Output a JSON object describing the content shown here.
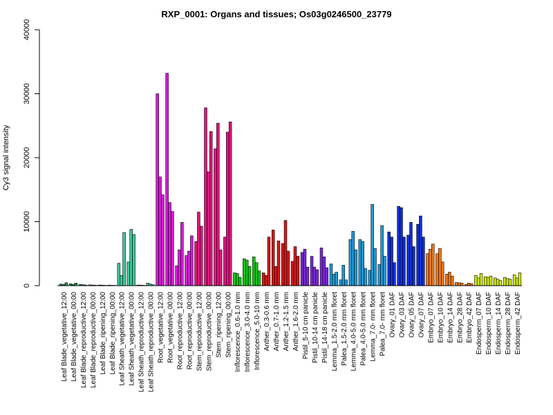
{
  "chart_data": {
    "type": "bar",
    "title": "RXP_0001: Organs and tissues; Os03g0246500_23779",
    "xlabel": "",
    "ylabel": "Cy3 signal intensity",
    "ylim": [
      0,
      40000
    ],
    "yticks": [
      0,
      10000,
      20000,
      30000,
      40000
    ],
    "grid": false,
    "legend": "none",
    "groups": [
      {
        "label": "Leaf Blade_vegetative_12:00",
        "color": "#1e8c4a",
        "values": [
          250,
          180,
          450
        ]
      },
      {
        "label": "Leaf Blade_vegetative_00:00",
        "color": "#1e8c4a",
        "values": [
          300,
          200,
          400
        ]
      },
      {
        "label": "Leaf Blade_reproductive_12:00",
        "color": "#1e8c4a",
        "values": [
          200,
          150,
          100
        ]
      },
      {
        "label": "Leaf Blade_reproductive_00:00",
        "color": "#1e8c4a",
        "values": [
          120,
          100,
          80
        ]
      },
      {
        "label": "Leaf Blade_ripening_12:00",
        "color": "#1e8c4a",
        "values": [
          100,
          80,
          60
        ]
      },
      {
        "label": "Leaf Blade_ripening_00:00",
        "color": "#1e8c4a",
        "values": [
          80,
          60,
          50
        ]
      },
      {
        "label": "Leaf Sheath_vegetative_12:00",
        "color": "#3cc89a",
        "values": [
          3500,
          1600,
          8300
        ]
      },
      {
        "label": "Leaf Sheath_vegetative_00:00",
        "color": "#3cc89a",
        "values": [
          3700,
          8800,
          8000
        ]
      },
      {
        "label": "Leaf Sheath_reproductive_12:00",
        "color": "#3cc89a",
        "values": [
          100,
          80,
          60
        ]
      },
      {
        "label": "Leaf Sheath_reproductive_00:00",
        "color": "#3cc89a",
        "values": [
          400,
          250,
          150
        ]
      },
      {
        "label": "Root_vegetative_12:00",
        "color": "#d81ad8",
        "values": [
          30000,
          17000,
          14200
        ]
      },
      {
        "label": "Root_vegetative_00:00",
        "color": "#d81ad8",
        "values": [
          33200,
          13000,
          11600
        ]
      },
      {
        "label": "Root_reproductive_12:00",
        "color": "#d81ad8",
        "values": [
          3100,
          5600,
          9900
        ]
      },
      {
        "label": "Root_reproductive_00:00",
        "color": "#d81ad8",
        "values": [
          4700,
          5400,
          7800
        ]
      },
      {
        "label": "Stem_reproductive_12:00",
        "color": "#e0167e",
        "values": [
          6900,
          11500,
          9300
        ]
      },
      {
        "label": "Stem_reproductive_00:00",
        "color": "#e0167e",
        "values": [
          27800,
          17800,
          24100
        ]
      },
      {
        "label": "Stem_ripening_12:00",
        "color": "#e0167e",
        "values": [
          21400,
          25400,
          5600
        ]
      },
      {
        "label": "Stem_ripening_00:00",
        "color": "#e0167e",
        "values": [
          7600,
          24000,
          25600
        ]
      },
      {
        "label": "Inflorescence_0.6-1.0 mm",
        "color": "#12c812",
        "values": [
          2000,
          1900,
          1300
        ]
      },
      {
        "label": "Inflorescence_3.0-4.0 mm",
        "color": "#12c812",
        "values": [
          4200,
          4000,
          3000
        ]
      },
      {
        "label": "Inflorescence_5.0-10 mm",
        "color": "#12c812",
        "values": [
          4500,
          3600,
          2300
        ]
      },
      {
        "label": "Anther_0.3-0.6 mm",
        "color": "#d81818",
        "values": [
          2000,
          1600,
          7600
        ]
      },
      {
        "label": "Anther_0.7-1.0 mm",
        "color": "#d81818",
        "values": [
          8700,
          3000,
          7000
        ]
      },
      {
        "label": "Anther_1.2-1.5 mm",
        "color": "#d81818",
        "values": [
          6600,
          10200,
          5400
        ]
      },
      {
        "label": "Anther_1.6-2.0 mm",
        "color": "#d81818",
        "values": [
          3800,
          6100,
          4600
        ]
      },
      {
        "label": "Pistil_5-10 cm panicle",
        "color": "#7a2ad8",
        "values": [
          5200,
          5700,
          2900
        ]
      },
      {
        "label": "Pistil_10-14 cm panicle",
        "color": "#7a2ad8",
        "values": [
          4600,
          2900,
          2500
        ]
      },
      {
        "label": "Pistil_14-18 cm panicle",
        "color": "#7a2ad8",
        "values": [
          5900,
          4500,
          2800
        ]
      },
      {
        "label": "Lemma_1.5-2.0 mm floret",
        "color": "#1e9ad8",
        "values": [
          3400,
          1800,
          2100
        ]
      },
      {
        "label": "Palea_1.5-2.0 mm floret",
        "color": "#1e9ad8",
        "values": [
          900,
          3200,
          900
        ]
      },
      {
        "label": "Lemma_4.0-5.0 mm floret",
        "color": "#1e9ad8",
        "values": [
          7200,
          8500,
          5600
        ]
      },
      {
        "label": "Palea_4.0-5.0 mm floret",
        "color": "#1e9ad8",
        "values": [
          7200,
          6900,
          2700
        ]
      },
      {
        "label": "Lemma_7.0- mm floret",
        "color": "#1e9ad8",
        "values": [
          2400,
          12700,
          5800
        ]
      },
      {
        "label": "Palea_7.0- mm floret",
        "color": "#1e9ad8",
        "values": [
          3300,
          9400,
          4600
        ]
      },
      {
        "label": "Ovary_01 DAF",
        "color": "#1030d8",
        "values": [
          8400,
          7600,
          3600
        ]
      },
      {
        "label": "Ovary_03 DAF",
        "color": "#1030d8",
        "values": [
          12400,
          12200,
          7600
        ]
      },
      {
        "label": "Ovary_05 DAF",
        "color": "#1030d8",
        "values": [
          7900,
          9900,
          6100
        ]
      },
      {
        "label": "Ovary_07 DAF",
        "color": "#1030d8",
        "values": [
          9600,
          10900,
          7600
        ]
      },
      {
        "label": "Embryo_07 DAF",
        "color": "#f07818",
        "values": [
          5000,
          5700,
          6500
        ]
      },
      {
        "label": "Embryo_10 DAF",
        "color": "#f07818",
        "values": [
          5000,
          5800,
          3700
        ]
      },
      {
        "label": "Embryo_14 DAF",
        "color": "#f07818",
        "values": [
          1800,
          2100,
          1500
        ]
      },
      {
        "label": "Embryo_28 DAF",
        "color": "#f07818",
        "values": [
          500,
          450,
          400
        ]
      },
      {
        "label": "Embryo_42 DAF",
        "color": "#f07818",
        "values": [
          200,
          400,
          300
        ]
      },
      {
        "label": "Endosperm_07 DAF",
        "color": "#d0e818",
        "values": [
          1600,
          1200,
          1900
        ]
      },
      {
        "label": "Endosperm_10 DAF",
        "color": "#d0e818",
        "values": [
          1400,
          1300,
          1500
        ]
      },
      {
        "label": "Endosperm_14 DAF",
        "color": "#d0e818",
        "values": [
          1200,
          1000,
          800
        ]
      },
      {
        "label": "Endosperm_28 DAF",
        "color": "#d0e818",
        "values": [
          1300,
          1100,
          1000
        ]
      },
      {
        "label": "Endosperm_42 DAF",
        "color": "#d0e818",
        "values": [
          1700,
          1200,
          2000
        ]
      }
    ]
  }
}
